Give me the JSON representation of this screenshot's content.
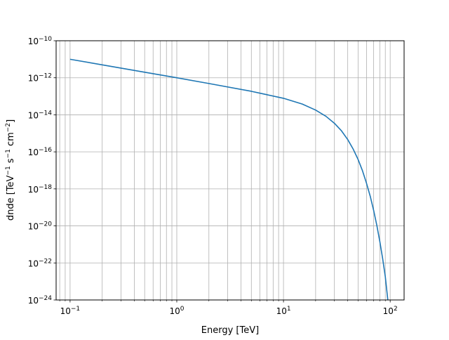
{
  "chart_data": {
    "type": "line",
    "title": "",
    "xlabel": "Energy [TeV]",
    "ylabel_main": "dnde [TeV",
    "ylabel_parts": [
      "dnde [TeV",
      "−1",
      " s",
      "−1",
      " cm",
      "−2",
      "]"
    ],
    "xscale": "log",
    "yscale": "log",
    "xlim": [
      0.074,
      135
    ],
    "ylim": [
      1e-24,
      1e-10
    ],
    "grid": "both-major-and-x-minor",
    "x_ticks": [
      {
        "value": 0.1,
        "base": "10",
        "exp": "−1"
      },
      {
        "value": 1,
        "base": "10",
        "exp": "0"
      },
      {
        "value": 10,
        "base": "10",
        "exp": "1"
      },
      {
        "value": 100,
        "base": "10",
        "exp": "2"
      }
    ],
    "y_ticks": [
      {
        "value": 1e-10,
        "base": "10",
        "exp": "−10"
      },
      {
        "value": 1e-12,
        "base": "10",
        "exp": "−12"
      },
      {
        "value": 1e-14,
        "base": "10",
        "exp": "−14"
      },
      {
        "value": 1e-16,
        "base": "10",
        "exp": "−16"
      },
      {
        "value": 1e-18,
        "base": "10",
        "exp": "−18"
      },
      {
        "value": 1e-20,
        "base": "10",
        "exp": "−20"
      },
      {
        "value": 1e-22,
        "base": "10",
        "exp": "−22"
      },
      {
        "value": 1e-24,
        "base": "10",
        "exp": "−24"
      }
    ],
    "series": [
      {
        "color": "#1f77b4",
        "x": [
          0.1,
          0.2,
          0.5,
          1,
          2,
          5,
          10,
          15,
          20,
          25,
          30,
          35,
          40,
          45,
          50,
          55,
          60,
          65,
          70,
          75,
          80,
          85,
          90,
          95,
          100
        ],
        "y": [
          1e-11,
          5e-12,
          2e-12,
          1e-12,
          4.9e-13,
          1.86e-13,
          7.8e-14,
          3.8e-14,
          1.8e-14,
          8.3e-15,
          3.5e-15,
          1.35e-15,
          4.6e-16,
          1.4e-16,
          3.9e-17,
          9.5e-18,
          2e-18,
          4e-19,
          6.8e-20,
          1.05e-20,
          1.4e-21,
          1.7e-22,
          1.8e-23,
          1e-24,
          1e-25
        ]
      }
    ]
  }
}
